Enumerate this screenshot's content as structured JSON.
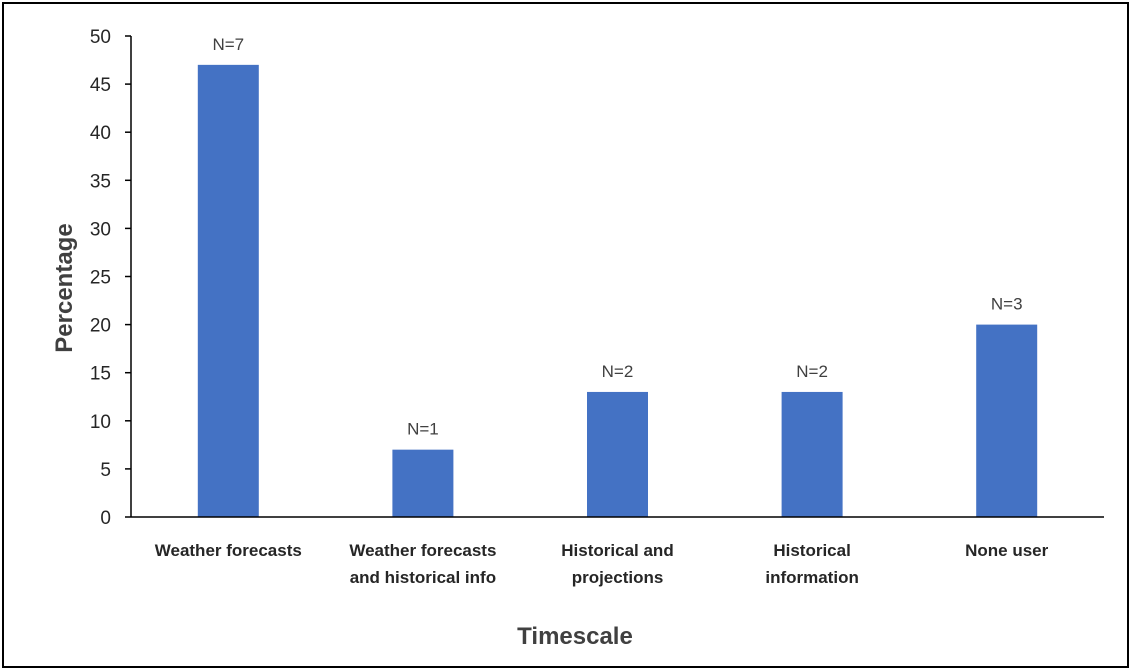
{
  "chart_data": {
    "type": "bar",
    "categories": [
      [
        "Weather forecasts"
      ],
      [
        "Weather forecasts",
        "and historical info"
      ],
      [
        "Historical and",
        "projections"
      ],
      [
        "Historical",
        "information"
      ],
      [
        "None user"
      ]
    ],
    "values": [
      47,
      7,
      13,
      13,
      20
    ],
    "data_labels": [
      "N=7",
      "N=1",
      "N=2",
      "N=2",
      "N=3"
    ],
    "title": "",
    "xlabel": "Timescale",
    "ylabel": "Percentage",
    "ylim": [
      0,
      50
    ],
    "yticks": [
      0,
      5,
      10,
      15,
      20,
      25,
      30,
      35,
      40,
      45,
      50
    ],
    "grid": false,
    "bar_color": "#4472C4"
  }
}
